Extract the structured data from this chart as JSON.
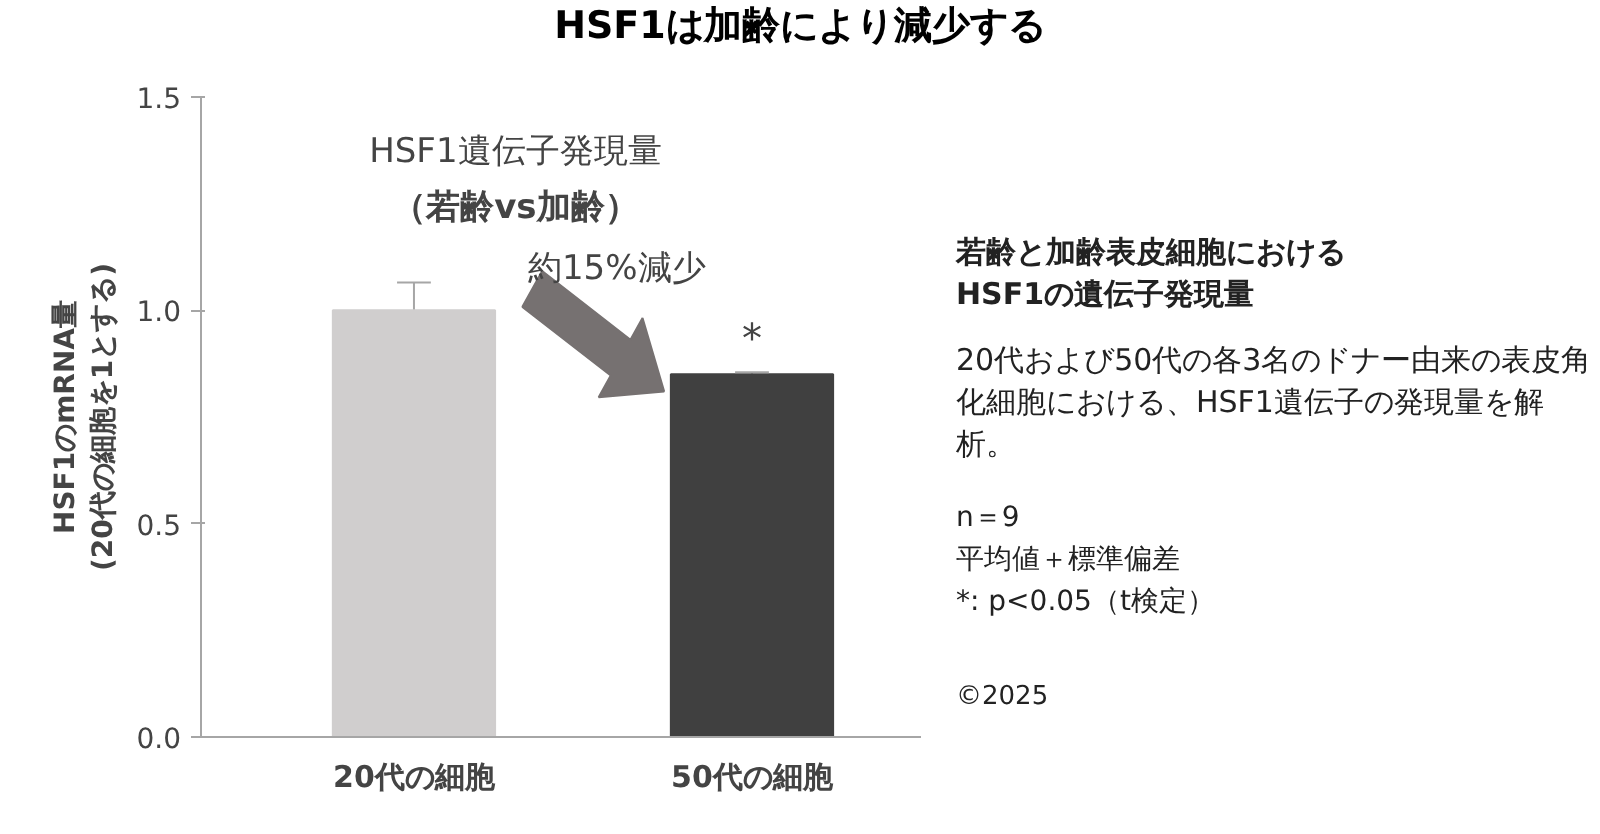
{
  "chart_data": {
    "type": "bar",
    "title": "HSF1は加齢により減少する",
    "ylabel": "HSF1のmRNA量\n(20代の細胞を1とする)",
    "categories": [
      "20代の細胞",
      "50代の細胞"
    ],
    "values": [
      1.0,
      0.85
    ],
    "colors": [
      "#d0cece",
      "#404040"
    ],
    "errors": [
      [
        1.0,
        1.065
      ],
      [
        0.85,
        0.855
      ]
    ],
    "ylim": [
      0,
      1.5
    ],
    "yticks": [
      {
        "value": 0,
        "label": "0.0"
      },
      {
        "value": 0.5,
        "label": "0.5"
      },
      {
        "value": 1,
        "label": "1.0"
      },
      {
        "value": 1.5,
        "label": "1.5"
      }
    ],
    "annotations": [
      "HSF1遺伝子発現量",
      "（若齢vs加齢）",
      "約15%減少",
      "*",
      "若齢と加齢表皮細胞における",
      "HSF1の遺伝子発現量",
      "20代および50代の各3名のドナー由来の表皮角化細胞における、HSF1遺伝子の発現量を解析。",
      "n＝9",
      "平均値＋標準偏差",
      "*: p<0.05（t検定）",
      "©2025"
    ]
  }
}
